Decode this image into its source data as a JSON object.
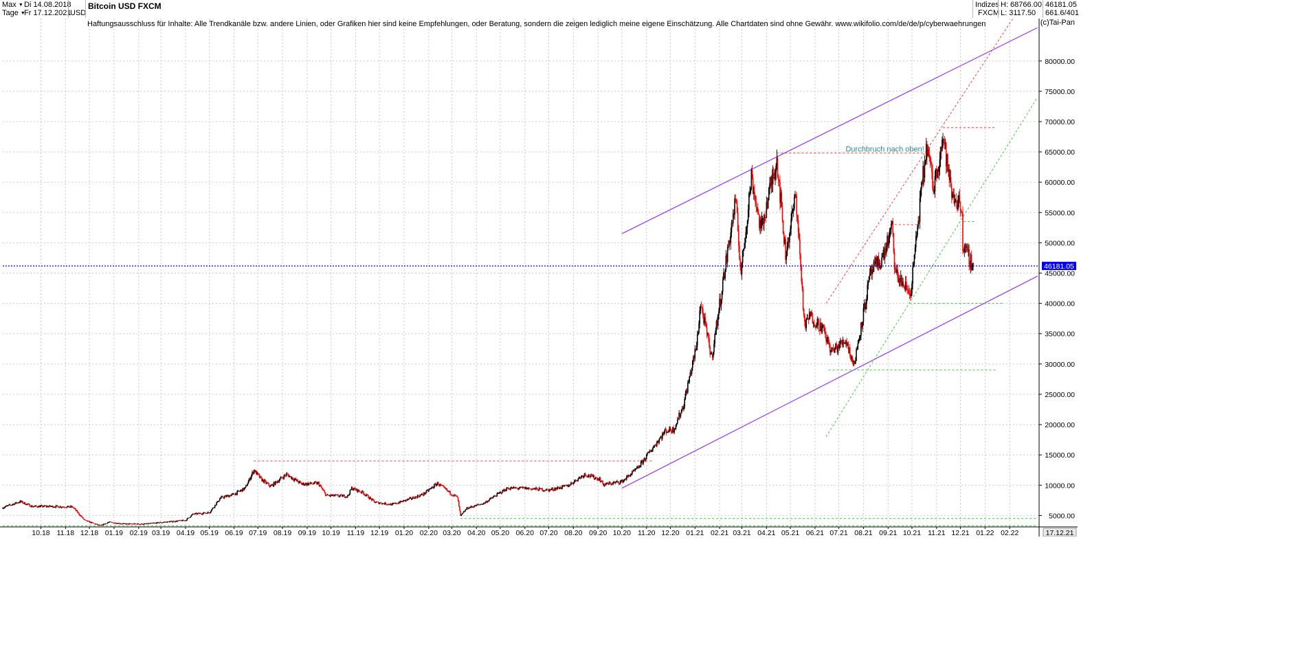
{
  "header": {
    "range_label": "Max",
    "interval_label": "Tage",
    "date_from": "Di 14.08.2018",
    "date_to": "Fr 17.12.2021",
    "currency": "USD",
    "title": "Bitcoin USD FXCM",
    "category": "Indizes",
    "source": "FXCM",
    "high_label": "H: 68766.00",
    "low_label": "L: 3117.50",
    "last_value": "46181.05",
    "stats_value": "661.6/401"
  },
  "disclaimer": "Haftungsausschluss für Inhalte: Alle Trendkanäle bzw. andere Linien, oder Grafiken hier sind keine Empfehlungen, oder Beratung, sondern die zeigen lediglich meine eigene Einschätzung. Alle Chartdaten sind ohne Gewähr.  www.wikifolio.com/de/de/p/cyberwaehrungen",
  "copyright": "(c)Tai-Pan",
  "colors": {
    "up_candle": "#000000",
    "down_candle": "#ff0000",
    "channel": "#9933ff",
    "resistance": "#ff3333",
    "support": "#33cc33",
    "current_price": "#0000ff",
    "grid": "#c8c8c8"
  },
  "chart_data": {
    "type": "candlestick",
    "title": "Bitcoin USD FXCM",
    "currency": "USD",
    "y_axis": {
      "range": [
        3117.5,
        87000
      ],
      "ticks": [
        "5000.00",
        "10000.00",
        "15000.00",
        "20000.00",
        "25000.00",
        "30000.00",
        "35000.00",
        "40000.00",
        "45000.00",
        "50000.00",
        "55000.00",
        "60000.00",
        "65000.00",
        "70000.00",
        "75000.00",
        "80000.00"
      ],
      "side": "right",
      "grid": true
    },
    "x_axis": {
      "range": [
        "2018-08-14",
        "2022-03-10"
      ],
      "ticks": [
        {
          "date": "2018-10-01",
          "label": "10.18"
        },
        {
          "date": "2018-11-01",
          "label": "11.18"
        },
        {
          "date": "2018-12-01",
          "label": "12.18"
        },
        {
          "date": "2019-01-01",
          "label": "01.19"
        },
        {
          "date": "2019-02-01",
          "label": "02.19"
        },
        {
          "date": "2019-03-01",
          "label": "03.19"
        },
        {
          "date": "2019-04-01",
          "label": "04.19"
        },
        {
          "date": "2019-05-01",
          "label": "05.19"
        },
        {
          "date": "2019-06-01",
          "label": "06.19"
        },
        {
          "date": "2019-07-01",
          "label": "07.19"
        },
        {
          "date": "2019-08-01",
          "label": "08.19"
        },
        {
          "date": "2019-09-01",
          "label": "09.19"
        },
        {
          "date": "2019-10-01",
          "label": "10.19"
        },
        {
          "date": "2019-11-01",
          "label": "11.19"
        },
        {
          "date": "2019-12-01",
          "label": "12.19"
        },
        {
          "date": "2020-01-01",
          "label": "01.20"
        },
        {
          "date": "2020-02-01",
          "label": "02.20"
        },
        {
          "date": "2020-03-01",
          "label": "03.20"
        },
        {
          "date": "2020-04-01",
          "label": "04.20"
        },
        {
          "date": "2020-05-01",
          "label": "05.20"
        },
        {
          "date": "2020-06-01",
          "label": "06.20"
        },
        {
          "date": "2020-07-01",
          "label": "07.20"
        },
        {
          "date": "2020-08-01",
          "label": "08.20"
        },
        {
          "date": "2020-09-01",
          "label": "09.20"
        },
        {
          "date": "2020-10-01",
          "label": "10.20"
        },
        {
          "date": "2020-11-01",
          "label": "11.20"
        },
        {
          "date": "2020-12-01",
          "label": "12.20"
        },
        {
          "date": "2021-01-01",
          "label": "01.21"
        },
        {
          "date": "2021-02-01",
          "label": "02.21"
        },
        {
          "date": "2021-03-01",
          "label": "03.21"
        },
        {
          "date": "2021-04-01",
          "label": "04.21"
        },
        {
          "date": "2021-05-01",
          "label": "05.21"
        },
        {
          "date": "2021-06-01",
          "label": "06.21"
        },
        {
          "date": "2021-07-01",
          "label": "07.21"
        },
        {
          "date": "2021-08-01",
          "label": "08.21"
        },
        {
          "date": "2021-09-01",
          "label": "09.21"
        },
        {
          "date": "2021-10-01",
          "label": "10.21"
        },
        {
          "date": "2021-11-01",
          "label": "11.21"
        },
        {
          "date": "2021-12-01",
          "label": "12.21"
        },
        {
          "date": "2022-01-01",
          "label": "01.22"
        },
        {
          "date": "2022-02-01",
          "label": "02.22"
        }
      ],
      "end_label": "17.12.21",
      "grid": true
    },
    "current_price": {
      "value": 46181.05,
      "label": "46181.05"
    },
    "price_path": [
      [
        "2018-08-14",
        6300
      ],
      [
        "2018-09-05",
        7300
      ],
      [
        "2018-09-20",
        6500
      ],
      [
        "2018-10-15",
        6500
      ],
      [
        "2018-11-10",
        6400
      ],
      [
        "2018-11-25",
        4200
      ],
      [
        "2018-12-15",
        3300
      ],
      [
        "2018-12-25",
        3900
      ],
      [
        "2019-01-15",
        3600
      ],
      [
        "2019-02-10",
        3600
      ],
      [
        "2019-03-01",
        3850
      ],
      [
        "2019-04-01",
        4200
      ],
      [
        "2019-04-10",
        5200
      ],
      [
        "2019-05-01",
        5500
      ],
      [
        "2019-05-15",
        7900
      ],
      [
        "2019-06-01",
        8500
      ],
      [
        "2019-06-15",
        9500
      ],
      [
        "2019-06-26",
        12500
      ],
      [
        "2019-07-05",
        11000
      ],
      [
        "2019-07-17",
        9800
      ],
      [
        "2019-08-06",
        11800
      ],
      [
        "2019-08-25",
        10200
      ],
      [
        "2019-09-15",
        10300
      ],
      [
        "2019-09-25",
        8300
      ],
      [
        "2019-10-22",
        8200
      ],
      [
        "2019-10-27",
        9500
      ],
      [
        "2019-11-10",
        8800
      ],
      [
        "2019-11-25",
        7200
      ],
      [
        "2019-12-17",
        6800
      ],
      [
        "2020-01-10",
        7800
      ],
      [
        "2020-01-25",
        8500
      ],
      [
        "2020-02-12",
        10300
      ],
      [
        "2020-02-28",
        8700
      ],
      [
        "2020-03-08",
        8000
      ],
      [
        "2020-03-12",
        4900
      ],
      [
        "2020-03-20",
        6200
      ],
      [
        "2020-04-10",
        7000
      ],
      [
        "2020-04-30",
        8700
      ],
      [
        "2020-05-10",
        9500
      ],
      [
        "2020-06-01",
        9500
      ],
      [
        "2020-07-01",
        9200
      ],
      [
        "2020-07-25",
        9900
      ],
      [
        "2020-08-15",
        11800
      ],
      [
        "2020-09-03",
        11000
      ],
      [
        "2020-09-08",
        10100
      ],
      [
        "2020-10-01",
        10600
      ],
      [
        "2020-10-21",
        12800
      ],
      [
        "2020-11-05",
        15500
      ],
      [
        "2020-11-25",
        19000
      ],
      [
        "2020-12-05",
        19200
      ],
      [
        "2020-12-17",
        23000
      ],
      [
        "2021-01-03",
        33000
      ],
      [
        "2021-01-08",
        40000
      ],
      [
        "2021-01-22",
        31000
      ],
      [
        "2021-02-08",
        46000
      ],
      [
        "2021-02-21",
        57000
      ],
      [
        "2021-02-28",
        45000
      ],
      [
        "2021-03-13",
        61000
      ],
      [
        "2021-03-25",
        52000
      ],
      [
        "2021-04-14",
        64000
      ],
      [
        "2021-04-25",
        48000
      ],
      [
        "2021-05-08",
        58000
      ],
      [
        "2021-05-19",
        36000
      ],
      [
        "2021-05-25",
        38000
      ],
      [
        "2021-06-10",
        36000
      ],
      [
        "2021-06-22",
        32000
      ],
      [
        "2021-07-10",
        34000
      ],
      [
        "2021-07-20",
        29800
      ],
      [
        "2021-08-10",
        45000
      ],
      [
        "2021-08-25",
        47500
      ],
      [
        "2021-09-06",
        52500
      ],
      [
        "2021-09-10",
        45000
      ],
      [
        "2021-09-29",
        41500
      ],
      [
        "2021-10-15",
        61000
      ],
      [
        "2021-10-20",
        66000
      ],
      [
        "2021-10-28",
        59000
      ],
      [
        "2021-11-09",
        67500
      ],
      [
        "2021-11-20",
        58000
      ],
      [
        "2021-12-03",
        56000
      ],
      [
        "2021-12-04",
        49000
      ],
      [
        "2021-12-10",
        48000
      ],
      [
        "2021-12-17",
        46181
      ]
    ],
    "trend_lines": [
      {
        "kind": "channel-upper",
        "style": "solid",
        "color": "purple",
        "from": [
          "2020-10-01",
          51500
        ],
        "to": [
          "2022-03-08",
          85500
        ]
      },
      {
        "kind": "channel-lower",
        "style": "solid",
        "color": "purple",
        "from": [
          "2020-10-01",
          9500
        ],
        "to": [
          "2022-03-08",
          44500
        ]
      },
      {
        "kind": "resistance",
        "style": "dashed",
        "color": "red",
        "from": [
          "2019-06-26",
          14000
        ],
        "to": [
          "2020-11-10",
          14000
        ]
      },
      {
        "kind": "resistance",
        "style": "dashed",
        "color": "red",
        "from": [
          "2021-04-14",
          64800
        ],
        "to": [
          "2021-10-20",
          64800
        ]
      },
      {
        "kind": "resistance",
        "style": "dashed",
        "color": "red",
        "from": [
          "2021-11-09",
          69000
        ],
        "to": [
          "2022-01-15",
          69000
        ]
      },
      {
        "kind": "resistance",
        "style": "dashed",
        "color": "red",
        "from": [
          "2021-09-04",
          53000
        ],
        "to": [
          "2021-10-10",
          53000
        ]
      },
      {
        "kind": "resistance",
        "style": "dashed",
        "color": "red",
        "from": [
          "2021-06-15",
          40000
        ],
        "to": [
          "2022-02-05",
          87000
        ]
      },
      {
        "kind": "support",
        "style": "dashed",
        "color": "green",
        "from": [
          "2021-06-15",
          18000
        ],
        "to": [
          "2022-03-08",
          74000
        ]
      },
      {
        "kind": "support",
        "style": "dashed",
        "color": "green",
        "from": [
          "2021-06-18",
          29000
        ],
        "to": [
          "2022-01-15",
          29000
        ]
      },
      {
        "kind": "support",
        "style": "dashed",
        "color": "green",
        "from": [
          "2021-09-28",
          40000
        ],
        "to": [
          "2022-01-25",
          40000
        ]
      },
      {
        "kind": "support",
        "style": "dashed",
        "color": "green",
        "from": [
          "2021-12-05",
          53500
        ],
        "to": [
          "2021-12-20",
          53500
        ]
      },
      {
        "kind": "support",
        "style": "dashed",
        "color": "green",
        "from": [
          "2020-03-12",
          4500
        ],
        "to": [
          "2022-03-08",
          4500
        ]
      },
      {
        "kind": "support",
        "style": "dashed",
        "color": "green",
        "from": [
          "2018-08-14",
          3300
        ],
        "to": [
          "2022-03-08",
          3300
        ]
      }
    ],
    "annotations": [
      {
        "text": "Durchbruch nach oben!",
        "date": "2021-08-28",
        "value": 65500
      }
    ]
  }
}
